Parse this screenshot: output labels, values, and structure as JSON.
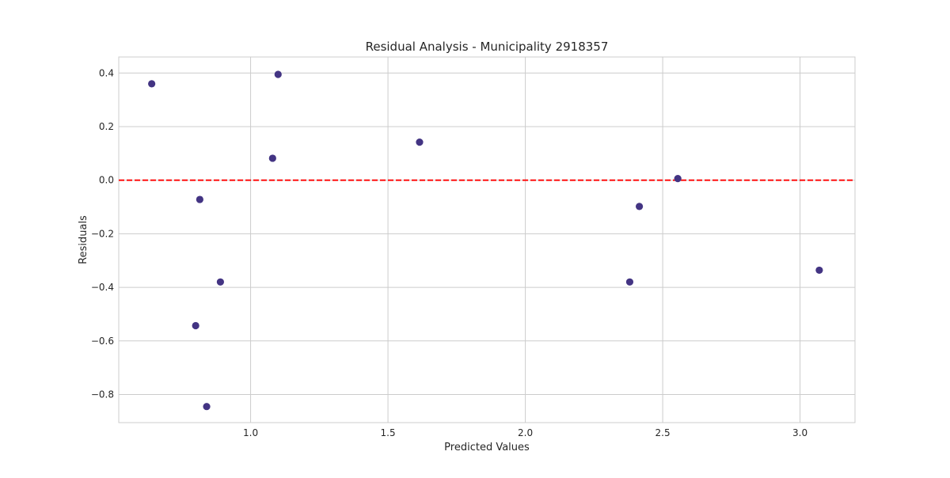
{
  "chart_data": {
    "type": "scatter",
    "title": "Residual Analysis - Municipality 2918357",
    "xlabel": "Predicted Values",
    "ylabel": "Residuals",
    "xlim": [
      0.52,
      3.2
    ],
    "ylim": [
      -0.905,
      0.46
    ],
    "x_ticks": [
      1.0,
      1.5,
      2.0,
      2.5,
      3.0
    ],
    "x_tick_labels": [
      "1.0",
      "1.5",
      "2.0",
      "2.5",
      "3.0"
    ],
    "y_ticks": [
      0.4,
      0.2,
      0.0,
      -0.2,
      -0.4,
      -0.6,
      -0.8
    ],
    "y_tick_labels": [
      "0.4",
      "0.2",
      "0.0",
      "−0.2",
      "−0.4",
      "−0.6",
      "−0.8"
    ],
    "grid": true,
    "point_color": "#433483",
    "reference_line": {
      "y": 0.0,
      "style": "dashed",
      "color": "#ff0000"
    },
    "points": [
      {
        "x": 0.64,
        "y": 0.36
      },
      {
        "x": 0.8,
        "y": -0.543
      },
      {
        "x": 0.815,
        "y": -0.072
      },
      {
        "x": 0.84,
        "y": -0.845
      },
      {
        "x": 0.89,
        "y": -0.38
      },
      {
        "x": 1.08,
        "y": 0.082
      },
      {
        "x": 1.1,
        "y": 0.395
      },
      {
        "x": 1.615,
        "y": 0.142
      },
      {
        "x": 2.38,
        "y": -0.38
      },
      {
        "x": 2.415,
        "y": -0.098
      },
      {
        "x": 2.555,
        "y": 0.006
      },
      {
        "x": 3.07,
        "y": -0.336
      }
    ]
  }
}
